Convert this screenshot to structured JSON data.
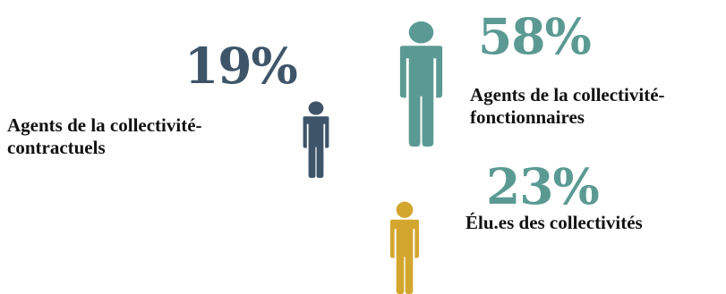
{
  "groups": [
    {
      "percent": "19%",
      "label_line1": "Agents de la collectivité-",
      "label_line2": "contractuels",
      "color": "#3e5569",
      "icon": "person-icon"
    },
    {
      "percent": "58%",
      "label_line1": "Agents de la collectivité-",
      "label_line2": "fonctionnaires",
      "color": "#5b9a93",
      "icon": "person-icon"
    },
    {
      "percent": "23%",
      "label_line1": "Élu.es des collectivités",
      "color": "#d3a72e",
      "icon": "person-icon"
    }
  ]
}
